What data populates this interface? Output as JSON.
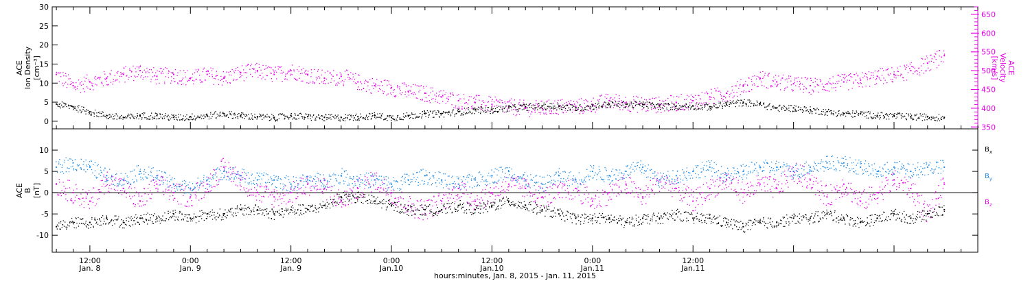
{
  "chart_data": [
    {
      "type": "scatter",
      "panel": "top",
      "ylabel_lines": [
        "ACE",
        "Ion Density",
        "[cm⁻³]"
      ],
      "y2label_lines": [
        "ACE",
        "Velocity",
        "[km/s]"
      ],
      "ylim": [
        -2,
        30
      ],
      "yticks": [
        0,
        5,
        10,
        15,
        20,
        25,
        30
      ],
      "y2lim": [
        345,
        670
      ],
      "y2ticks": [
        350,
        400,
        450,
        500,
        550,
        600,
        650
      ],
      "x_range_hours": [
        -16.5,
        94
      ],
      "series": [
        {
          "name": "",
          "axis": "left",
          "color": "#000000",
          "x": [
            -16,
            -14,
            -12,
            -10,
            -8,
            -6,
            -4,
            -2,
            0,
            2,
            4,
            6,
            8,
            10,
            12,
            14,
            16,
            18,
            20,
            22,
            24,
            26,
            28,
            30,
            32,
            34,
            36,
            38,
            40,
            42,
            44,
            46,
            48,
            50,
            52,
            54,
            56,
            58,
            60,
            62,
            64,
            66,
            68,
            70,
            72,
            74,
            76,
            78,
            80,
            82,
            84,
            86,
            88,
            90
          ],
          "y": [
            4.5,
            3.8,
            2.5,
            1.5,
            1.0,
            1.5,
            1.5,
            1.0,
            1.2,
            1.5,
            2.0,
            1.5,
            1.2,
            1.0,
            1.5,
            1.2,
            1.0,
            1.0,
            1.2,
            1.5,
            1.0,
            1.5,
            2.0,
            2.0,
            2.5,
            3.0,
            3.0,
            3.5,
            3.8,
            4.0,
            4.0,
            3.5,
            4.0,
            4.5,
            4.5,
            4.5,
            4.0,
            4.0,
            4.0,
            3.8,
            4.5,
            5.0,
            4.5,
            3.5,
            3.5,
            3.0,
            2.5,
            2.0,
            2.0,
            1.5,
            1.5,
            1.2,
            1.2,
            1.0
          ]
        },
        {
          "name": "",
          "axis": "right",
          "color": "#e600e6",
          "x": [
            -16,
            -14,
            -12,
            -10,
            -8,
            -6,
            -4,
            -2,
            0,
            2,
            4,
            6,
            8,
            10,
            12,
            14,
            16,
            18,
            20,
            22,
            24,
            26,
            28,
            30,
            32,
            34,
            36,
            38,
            40,
            42,
            44,
            46,
            48,
            50,
            52,
            54,
            56,
            58,
            60,
            62,
            64,
            66,
            68,
            70,
            72,
            74,
            76,
            78,
            80,
            82,
            84,
            86,
            88,
            90
          ],
          "y": [
            490,
            460,
            470,
            480,
            490,
            500,
            485,
            490,
            480,
            490,
            480,
            495,
            500,
            490,
            500,
            490,
            480,
            485,
            470,
            460,
            455,
            445,
            440,
            430,
            420,
            415,
            410,
            405,
            400,
            400,
            405,
            405,
            410,
            420,
            415,
            410,
            410,
            415,
            420,
            430,
            440,
            460,
            480,
            470,
            465,
            460,
            465,
            470,
            475,
            485,
            490,
            500,
            520,
            540
          ]
        }
      ]
    },
    {
      "type": "scatter",
      "panel": "bottom",
      "ylabel_lines": [
        "ACE",
        "B",
        "[nT]"
      ],
      "ylim": [
        -14,
        15
      ],
      "yticks": [
        -10,
        -5,
        0,
        5,
        10
      ],
      "x_range_hours": [
        -16.5,
        94
      ],
      "reference_line_y": 0,
      "series": [
        {
          "name": "Bx",
          "color": "#000000",
          "x": [
            -16,
            -14,
            -12,
            -10,
            -8,
            -6,
            -4,
            -2,
            0,
            2,
            4,
            6,
            8,
            10,
            12,
            14,
            16,
            18,
            20,
            22,
            24,
            26,
            28,
            30,
            32,
            34,
            36,
            38,
            40,
            42,
            44,
            46,
            48,
            50,
            52,
            54,
            56,
            58,
            60,
            62,
            64,
            66,
            68,
            70,
            72,
            74,
            76,
            78,
            80,
            82,
            84,
            86,
            88,
            90
          ],
          "y": [
            -8,
            -7,
            -7,
            -6,
            -7,
            -6,
            -6,
            -5,
            -6,
            -5,
            -5,
            -4,
            -4,
            -5,
            -4,
            -4,
            -3,
            -1,
            -1,
            -2,
            -3,
            -4,
            -4,
            -4,
            -3,
            -4,
            -3,
            -2,
            -3,
            -4,
            -5,
            -6,
            -6,
            -6,
            -7,
            -6,
            -6,
            -5,
            -6,
            -6,
            -7,
            -8,
            -7,
            -7,
            -6,
            -6,
            -5,
            -6,
            -7,
            -6,
            -5,
            -6,
            -5,
            -4
          ]
        },
        {
          "name": "By",
          "color": "#1e8ce6",
          "x": [
            -16,
            -14,
            -12,
            -10,
            -8,
            -6,
            -4,
            -2,
            0,
            2,
            4,
            6,
            8,
            10,
            12,
            14,
            16,
            18,
            20,
            22,
            24,
            26,
            28,
            30,
            32,
            34,
            36,
            38,
            40,
            42,
            44,
            46,
            48,
            50,
            52,
            54,
            56,
            58,
            60,
            62,
            64,
            66,
            68,
            70,
            72,
            74,
            76,
            78,
            80,
            82,
            84,
            86,
            88,
            90
          ],
          "y": [
            6,
            7,
            6,
            4,
            3,
            5,
            4,
            2,
            1,
            3,
            5,
            4,
            3,
            3,
            2,
            3,
            3,
            4,
            3,
            3,
            2,
            3,
            4,
            3,
            2,
            3,
            4,
            5,
            3,
            2,
            4,
            3,
            5,
            4,
            5,
            6,
            3,
            4,
            5,
            6,
            4,
            5,
            6,
            6,
            5,
            6,
            7,
            7,
            6,
            5,
            6,
            5,
            6,
            6
          ]
        },
        {
          "name": "Bz",
          "color": "#e600e6",
          "x": [
            -16,
            -14,
            -12,
            -10,
            -8,
            -6,
            -4,
            -2,
            0,
            2,
            4,
            6,
            8,
            10,
            12,
            14,
            16,
            18,
            20,
            22,
            24,
            26,
            28,
            30,
            32,
            34,
            36,
            38,
            40,
            42,
            44,
            46,
            48,
            50,
            52,
            54,
            56,
            58,
            60,
            62,
            64,
            66,
            68,
            70,
            72,
            74,
            76,
            78,
            80,
            82,
            84,
            86,
            88,
            90
          ],
          "y": [
            2,
            0,
            -2,
            3,
            1,
            -2,
            2,
            0,
            -1,
            2,
            6,
            3,
            0,
            -1,
            0,
            2,
            1,
            -2,
            1,
            3,
            0,
            -3,
            -4,
            -2,
            1,
            -2,
            0,
            2,
            1,
            -1,
            0,
            1,
            -2,
            0,
            2,
            -1,
            3,
            1,
            -2,
            1,
            3,
            0,
            2,
            1,
            5,
            3,
            -1,
            2,
            -2,
            0,
            3,
            1,
            -5,
            2
          ]
        }
      ]
    }
  ],
  "legend": {
    "bx": "B",
    "bx_sub": "x",
    "by": "B",
    "by_sub": "y",
    "bz": "B",
    "bz_sub": "z"
  },
  "x_axis": {
    "ticks": [
      {
        "hour": -12,
        "time": "12:00",
        "date": "Jan. 8"
      },
      {
        "hour": 0,
        "time": "0:00",
        "date": "Jan. 9"
      },
      {
        "hour": 12,
        "time": "12:00",
        "date": "Jan. 9"
      },
      {
        "hour": 24,
        "time": "0:00",
        "date": "Jan.10"
      },
      {
        "hour": 36,
        "time": "12:00",
        "date": "Jan.10"
      },
      {
        "hour": 48,
        "time": "0:00",
        "date": "Jan.11"
      },
      {
        "hour": 60,
        "time": "12:00",
        "date": "Jan.11"
      }
    ],
    "xlabel": "hours:minutes, Jan.  8, 2015 - Jan. 11, 2015"
  }
}
